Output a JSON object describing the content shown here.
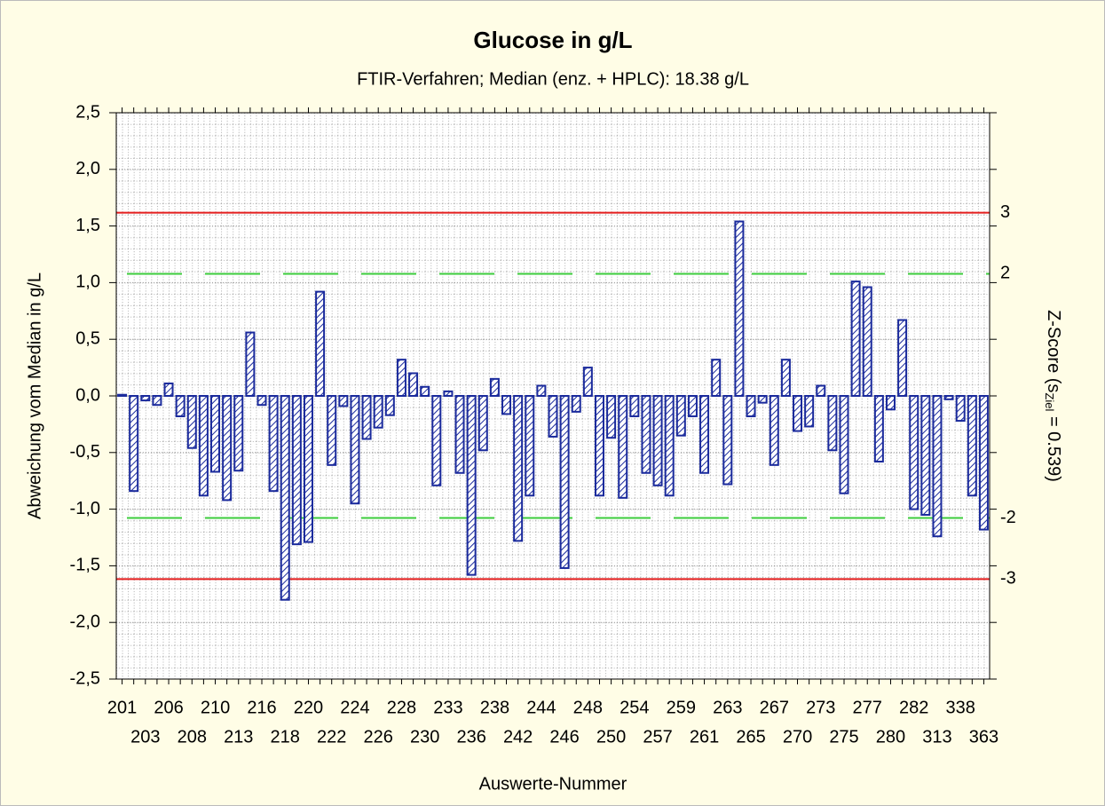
{
  "chart_data": {
    "type": "bar",
    "title": "Glucose in g/L",
    "subtitle": "FTIR-Verfahren; Median (enz. + HPLC): 18.38 g/L",
    "xlabel": "Auswerte-Nummer",
    "ylabel": "Abweichung vom Median in g/L",
    "y2label": [
      "Z-Score (s",
      "Ziel",
      " = 0.539)"
    ],
    "categories": [
      "201",
      null,
      "203",
      null,
      "206",
      null,
      "208",
      null,
      "210",
      null,
      "213",
      null,
      "216",
      null,
      "218",
      null,
      "220",
      null,
      "222",
      null,
      "224",
      null,
      "226",
      null,
      "228",
      null,
      "230",
      null,
      "233",
      null,
      "236",
      null,
      "238",
      null,
      "242",
      null,
      "244",
      null,
      "246",
      null,
      "248",
      null,
      "250",
      null,
      "254",
      null,
      "257",
      null,
      "259",
      null,
      "261",
      null,
      "263",
      null,
      "265",
      null,
      "267",
      null,
      "270",
      null,
      "273",
      null,
      "275",
      null,
      "277",
      null,
      "280",
      null,
      "282",
      null,
      "313",
      null,
      "338",
      null,
      "363"
    ],
    "values": [
      0.01,
      -0.84,
      -0.04,
      -0.08,
      0.11,
      -0.18,
      -0.46,
      -0.88,
      -0.67,
      -0.92,
      -0.66,
      0.56,
      -0.08,
      -0.84,
      -1.8,
      -1.31,
      -1.29,
      0.92,
      -0.61,
      -0.09,
      -0.95,
      -0.38,
      -0.28,
      -0.17,
      0.32,
      0.2,
      0.08,
      -0.79,
      0.04,
      -0.68,
      -1.58,
      -0.48,
      0.15,
      -0.16,
      -1.28,
      -0.88,
      0.09,
      -0.36,
      -1.52,
      -0.14,
      0.25,
      -0.88,
      -0.37,
      -0.9,
      -0.18,
      -0.68,
      -0.79,
      -0.88,
      -0.35,
      -0.18,
      -0.68,
      0.32,
      -0.78,
      1.54,
      -0.18,
      -0.06,
      -0.61,
      0.32,
      -0.31,
      -0.27,
      0.09,
      -0.48,
      -0.86,
      1.01,
      0.96,
      -0.58,
      -0.12,
      0.67,
      -1.0,
      -1.05,
      -1.24,
      -0.03,
      -0.22,
      -0.88,
      -1.18
    ],
    "color": "#1a2a9c",
    "ylim": [
      -2.5,
      2.5
    ],
    "yticks": [
      {
        "value": -2.5,
        "label": "-2,5"
      },
      {
        "value": -2.0,
        "label": "-2,0"
      },
      {
        "value": -1.5,
        "label": "-1,5"
      },
      {
        "value": -1.0,
        "label": "-1,0"
      },
      {
        "value": -0.5,
        "label": "-0,5"
      },
      {
        "value": 0.0,
        "label": "0,0"
      },
      {
        "value": 0.5,
        "label": "0,5"
      },
      {
        "value": 1.0,
        "label": "1,0"
      },
      {
        "value": 1.5,
        "label": "1,5"
      },
      {
        "value": 2.0,
        "label": "2,0"
      },
      {
        "value": 2.5,
        "label": "2,5"
      }
    ],
    "y2lim": [
      -4.638,
      4.638
    ],
    "y2ticks": [
      -3,
      -2,
      2,
      3
    ],
    "hlines": [
      {
        "value": 3,
        "axis": "y2",
        "color": "#e41e1e",
        "style": "solid"
      },
      {
        "value": 2,
        "axis": "y2",
        "color": "#3ccc3c",
        "style": "dashed"
      },
      {
        "value": -2,
        "axis": "y2",
        "color": "#3ccc3c",
        "style": "dashed"
      },
      {
        "value": -3,
        "axis": "y2",
        "color": "#e41e1e",
        "style": "solid"
      }
    ],
    "grid": true
  }
}
